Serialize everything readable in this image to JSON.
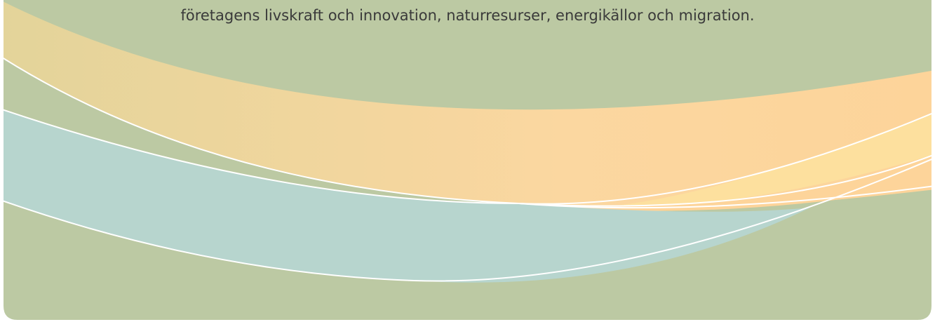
{
  "text": "företagens livskraft och innovation, naturresurser, energikällor och migration."
}
